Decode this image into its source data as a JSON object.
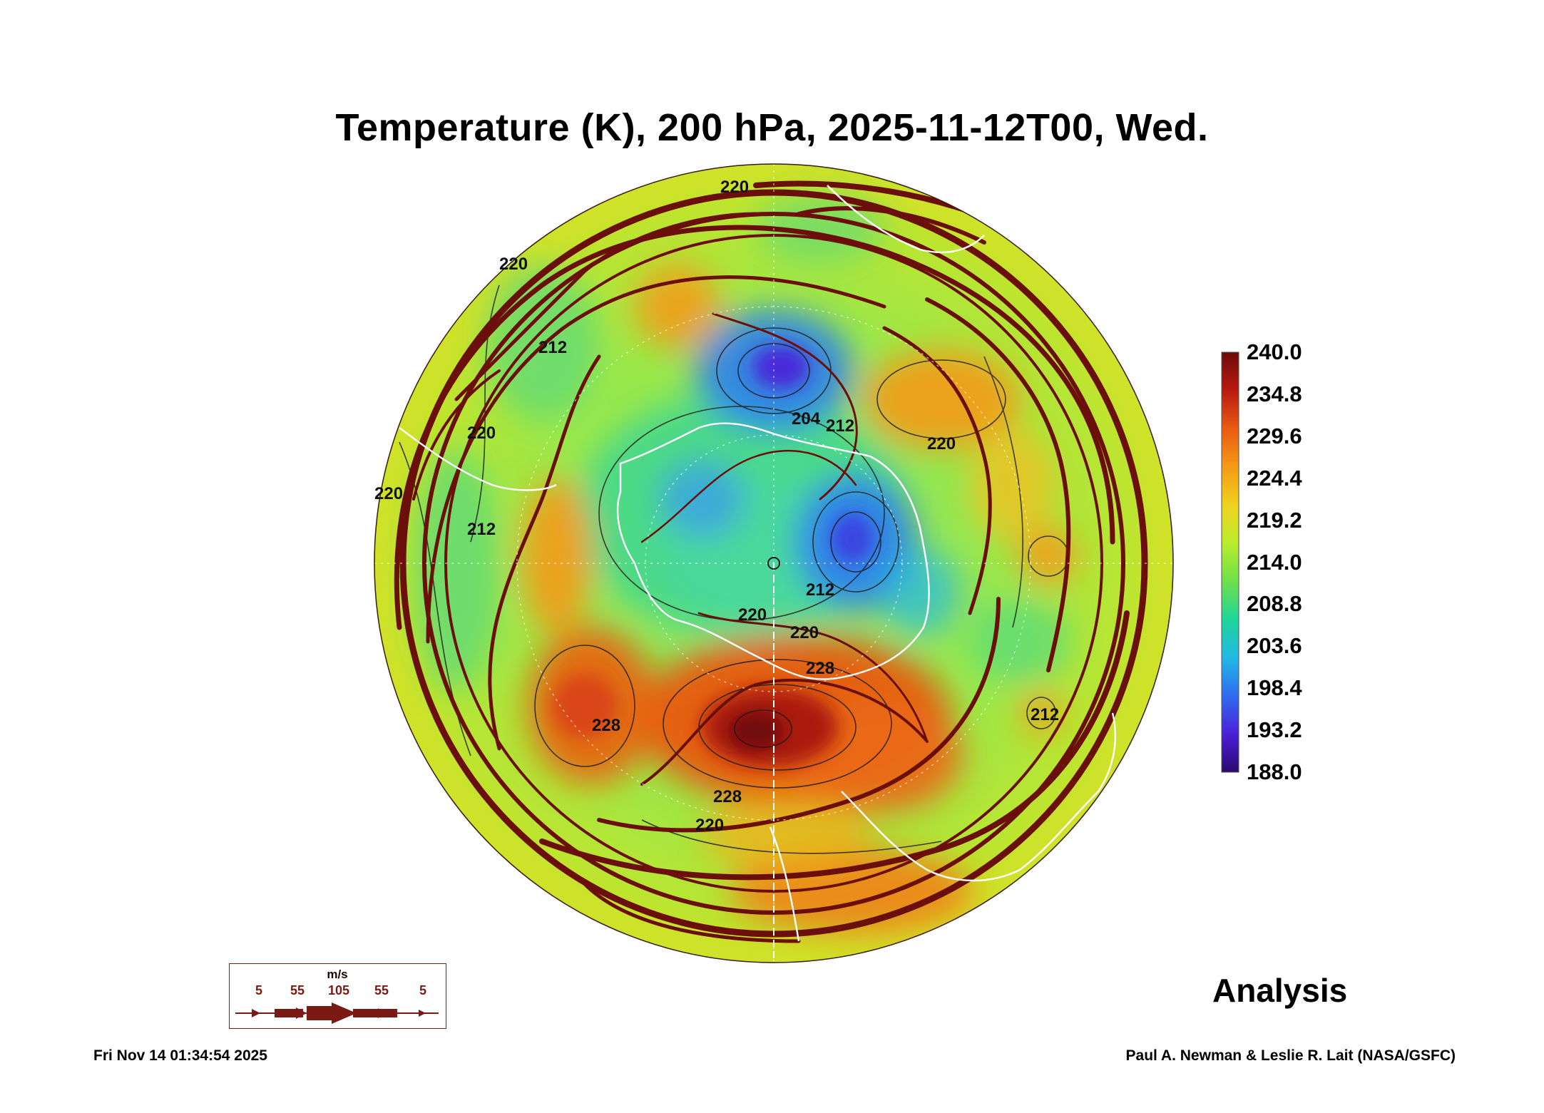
{
  "title": "Temperature (K), 200 hPa, 2025-11-12T00, Wed.",
  "colorbar": {
    "min": 188.0,
    "max": 240.0,
    "labels": [
      "240.0",
      "234.8",
      "229.6",
      "224.4",
      "219.2",
      "214.0",
      "208.8",
      "203.6",
      "198.4",
      "193.2",
      "188.0"
    ],
    "colors": [
      "#2a0a6e",
      "#4b1fd8",
      "#2f6cf0",
      "#22b8e6",
      "#1fd59a",
      "#6ee04a",
      "#b8ec2c",
      "#f0d21e",
      "#f59a16",
      "#ea5a12",
      "#b81a10",
      "#6e0a08"
    ]
  },
  "contour_labels": [
    "220",
    "220",
    "212",
    "220",
    "212",
    "204",
    "212",
    "220",
    "212",
    "220",
    "228",
    "228",
    "220",
    "228",
    "220",
    "220",
    "212"
  ],
  "legend": {
    "unit": "m/s",
    "values": [
      "5",
      "55",
      "105",
      "55",
      "5"
    ]
  },
  "analysis_label": "Analysis",
  "timestamp": "Fri Nov 14 01:34:54 2025",
  "credit": "Paul A. Newman & Leslie R. Lait (NASA/GSFC)",
  "colors": {
    "streamline": "#6b0f0a",
    "coastline": "#ffffff",
    "contour": "#1a1a1a"
  }
}
